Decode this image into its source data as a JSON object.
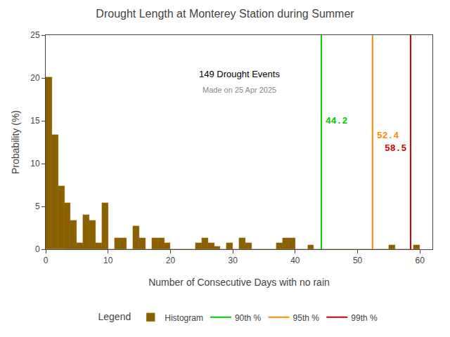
{
  "chart_data": {
    "type": "histogram",
    "title": "Drought Length at Monterey Station during Summer",
    "x_label": "Number of Consecutive Days with no rain",
    "y_label": "Probability (%)",
    "name": "Histogram",
    "color": "#8B6000",
    "bins": [
      0,
      1,
      2,
      3,
      4,
      5,
      6,
      7,
      8,
      9,
      10,
      11,
      12,
      13,
      14,
      15,
      16,
      17,
      18,
      19,
      20,
      21,
      22,
      23,
      24,
      25,
      26,
      27,
      28,
      29,
      30,
      31,
      32,
      33,
      34,
      35,
      36,
      37,
      38,
      39,
      40,
      41,
      42,
      43,
      44,
      45,
      46,
      47,
      48,
      49,
      50,
      51,
      52,
      53,
      54,
      55,
      56,
      57,
      58,
      59,
      60
    ],
    "values": [
      20.1,
      13.4,
      7.4,
      5.4,
      3.4,
      0.7,
      4.0,
      3.4,
      0.7,
      5.4,
      0.0,
      1.3,
      1.3,
      0.0,
      2.7,
      1.3,
      0.0,
      1.3,
      1.3,
      0.7,
      0.0,
      0.0,
      0.0,
      0.0,
      0.7,
      1.3,
      0.7,
      0.3,
      0.0,
      0.7,
      0.0,
      1.3,
      0.7,
      0.0,
      0.0,
      0.0,
      0.0,
      0.7,
      1.3,
      1.3,
      0.0,
      0.0,
      0.5,
      0.0,
      0.0,
      0.0,
      0.0,
      0.0,
      0.0,
      0.0,
      0.0,
      0.0,
      0.0,
      0.0,
      0.0,
      0.5,
      0.0,
      0.0,
      0.0,
      0.5
    ],
    "vlines": [
      {
        "name": "90th %",
        "value": 44.2,
        "color": "#00CC00"
      },
      {
        "name": "95th %",
        "value": 52.4,
        "color": "#FF8C00"
      },
      {
        "name": "99th %",
        "value": 58.5,
        "color": "#CC0000"
      }
    ],
    "annotations": [
      "149 Drought Events",
      "Made on 25 Apr 2025"
    ],
    "legend_title": "Legend",
    "legend": "bottom",
    "xlim": [
      0,
      62
    ],
    "ylim": [
      0,
      25
    ],
    "xticks": [
      0,
      10,
      20,
      30,
      40,
      50,
      60
    ],
    "yticks": [
      0,
      5,
      10,
      15,
      20,
      25
    ],
    "grid": false
  }
}
